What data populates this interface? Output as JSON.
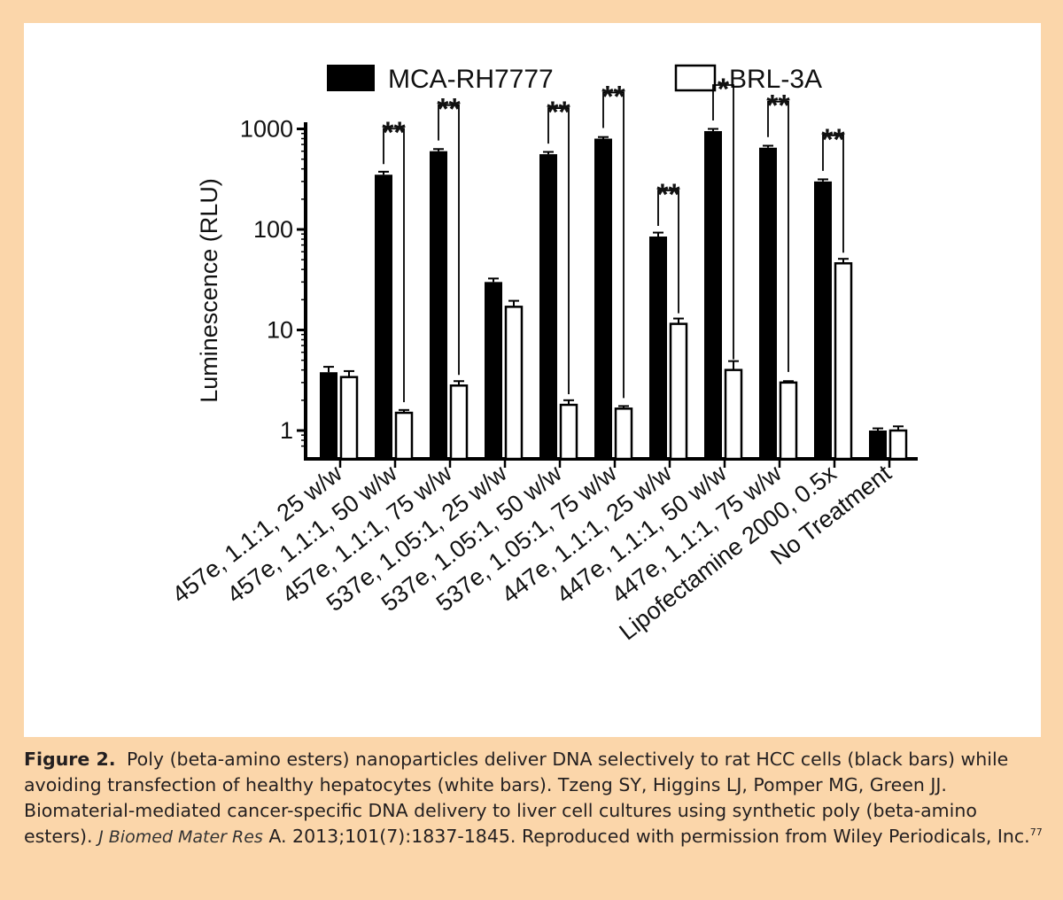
{
  "chart_data": {
    "type": "bar",
    "ylabel": "Luminescence (RLU)",
    "yscale": "log",
    "ylim": [
      0.6,
      1000
    ],
    "yticks": [
      {
        "value": 1,
        "label": "1"
      },
      {
        "value": 10,
        "label": "10"
      },
      {
        "value": 100,
        "label": "100"
      },
      {
        "value": 1000,
        "label": "1000"
      }
    ],
    "legend_position": "top",
    "categories": [
      "457e, 1.1:1, 25 w/w",
      "457e, 1.1:1, 50 w/w",
      "457e, 1.1:1, 75 w/w",
      "537e, 1.05:1, 25 w/w",
      "537e, 1.05:1, 50 w/w",
      "537e, 1.05:1, 75 w/w",
      "447e, 1.1:1, 25 w/w",
      "447e, 1.1:1, 50 w/w",
      "447e, 1.1:1, 75 w/w",
      "Lipofectamine 2000, 0.5x",
      "No Treatment"
    ],
    "series": [
      {
        "name": "MCA-RH7777",
        "color": "#000000",
        "values": [
          3.8,
          350,
          600,
          30,
          560,
          800,
          85,
          950,
          650,
          300,
          1.0
        ],
        "errors": [
          0.5,
          25,
          30,
          2.5,
          30,
          30,
          8,
          50,
          30,
          15,
          0.05
        ]
      },
      {
        "name": "BRL-3A",
        "color": "#ffffff",
        "values": [
          3.4,
          1.5,
          2.8,
          17,
          1.8,
          1.65,
          11.5,
          4.0,
          3.0,
          46,
          1.0
        ],
        "errors": [
          0.5,
          0.1,
          0.3,
          2.5,
          0.2,
          0.1,
          1.5,
          0.9,
          0.1,
          5,
          0.1
        ]
      }
    ],
    "significance": [
      "",
      "**",
      "**",
      "",
      "**",
      "**",
      "**",
      "*",
      "**",
      "**",
      ""
    ]
  },
  "caption": {
    "label": "Figure 2.",
    "text_before": "Poly (beta-amino esters) nanoparticles deliver DNA selectively to rat HCC cells (black bars) while avoiding transfection of healthy hepatocytes (white bars). Tzeng SY, Higgins LJ, Pomper MG, Green JJ. Biomaterial-mediated cancer-specific DNA delivery to liver cell cultures using synthetic poly (beta-amino esters).",
    "journal": "J Biomed Mater Res",
    "text_after": "A. 2013;101(7):1837-1845. Reproduced with permission from Wiley Periodicals, Inc.",
    "ref": "77"
  }
}
